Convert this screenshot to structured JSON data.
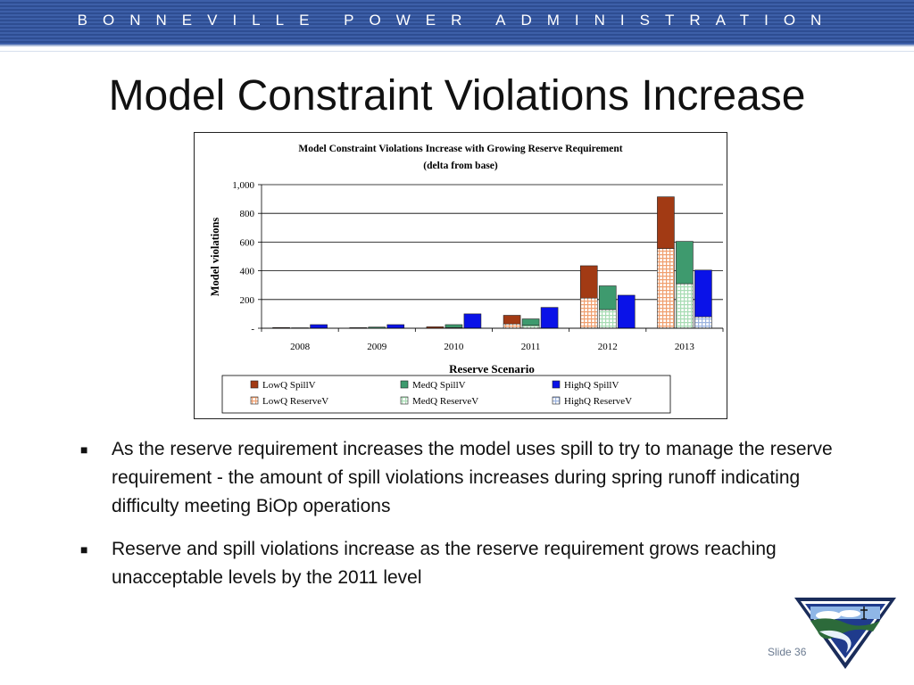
{
  "header": {
    "org_name": "BONNEVILLE POWER ADMINISTRATION"
  },
  "slide": {
    "title": "Model Constraint Violations Increase",
    "number_label": "Slide 36"
  },
  "bullets": [
    "As the reserve requirement increases the model uses spill to try to manage the reserve requirement - the amount of spill violations increases during spring runoff indicating difficulty meeting BiOp operations",
    "Reserve and spill violations increase as the reserve requirement grows reaching unacceptable levels by the 2011 level"
  ],
  "chart_data": {
    "type": "bar",
    "stacked_groups": true,
    "title": "Model Constraint Violations Increase with Growing Reserve Requirement",
    "subtitle": "(delta from base)",
    "xlabel": "Reserve Scenario",
    "ylabel": "Model violations",
    "categories": [
      "2008",
      "2009",
      "2010",
      "2011",
      "2012",
      "2013"
    ],
    "ylim": [
      0,
      1000
    ],
    "yticks": [
      0,
      200,
      400,
      600,
      800,
      1000
    ],
    "ytick_labels": [
      "-",
      "200",
      "400",
      "600",
      "800",
      "1,000"
    ],
    "grid": true,
    "legend_position": "bottom",
    "groups": [
      {
        "name": "LowQ",
        "reserve_series": "LowQ ReserveV",
        "spill_series": "LowQ SpillV"
      },
      {
        "name": "MedQ",
        "reserve_series": "MedQ ReserveV",
        "spill_series": "MedQ SpillV"
      },
      {
        "name": "HighQ",
        "reserve_series": "HighQ ReserveV",
        "spill_series": "HighQ SpillV"
      }
    ],
    "series": [
      {
        "name": "LowQ SpillV",
        "group": "LowQ",
        "stack": "top",
        "color": "#a23a14",
        "values": [
          5,
          4,
          10,
          60,
          225,
          360
        ]
      },
      {
        "name": "MedQ SpillV",
        "group": "MedQ",
        "stack": "top",
        "color": "#3e9a6e",
        "values": [
          3,
          8,
          20,
          45,
          165,
          295
        ]
      },
      {
        "name": "HighQ SpillV",
        "group": "HighQ",
        "stack": "top",
        "color": "#0a12e8",
        "values": [
          25,
          25,
          100,
          145,
          230,
          325
        ]
      },
      {
        "name": "LowQ ReserveV",
        "group": "LowQ",
        "stack": "bottom",
        "color": "#f0a070",
        "values": [
          0,
          0,
          0,
          30,
          210,
          555
        ]
      },
      {
        "name": "MedQ ReserveV",
        "group": "MedQ",
        "stack": "bottom",
        "color": "#a8dcb4",
        "values": [
          0,
          0,
          5,
          20,
          130,
          310
        ]
      },
      {
        "name": "HighQ ReserveV",
        "group": "HighQ",
        "stack": "bottom",
        "color": "#9cb4e0",
        "values": [
          0,
          0,
          0,
          0,
          0,
          80
        ]
      }
    ],
    "legend_entries": [
      "LowQ SpillV",
      "MedQ SpillV",
      "HighQ SpillV",
      "LowQ ReserveV",
      "MedQ ReserveV",
      "HighQ ReserveV"
    ]
  }
}
